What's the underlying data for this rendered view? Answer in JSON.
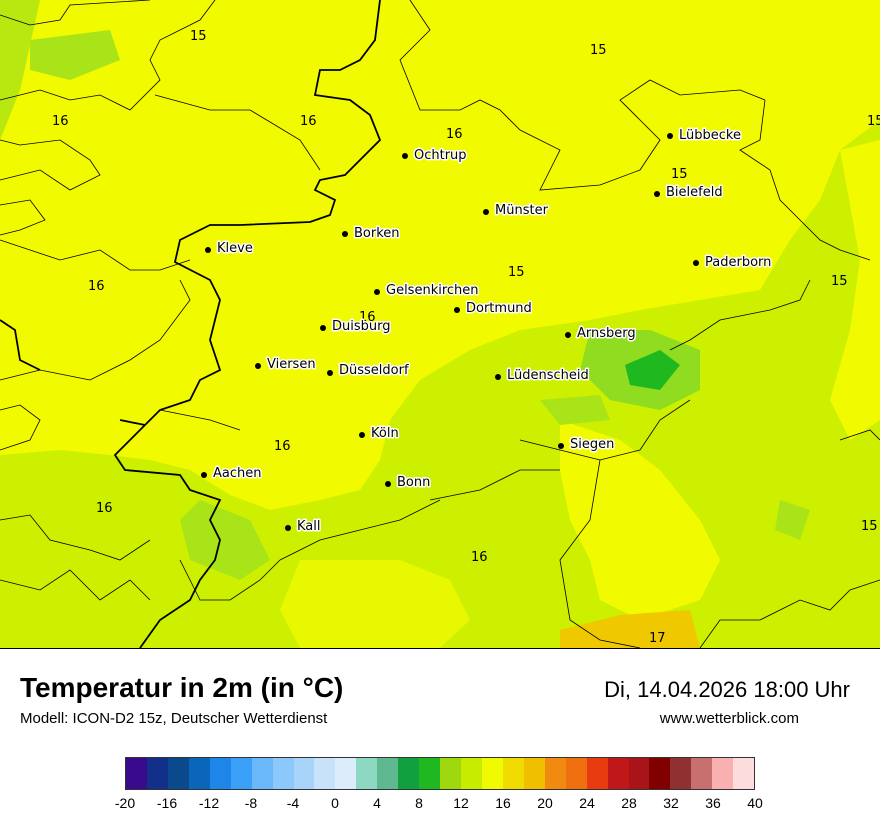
{
  "map": {
    "cities": [
      {
        "name": "Lübbecke"
      },
      {
        "name": "Ochtrup"
      },
      {
        "name": "Bielefeld"
      },
      {
        "name": "Münster"
      },
      {
        "name": "Borken"
      },
      {
        "name": "Kleve"
      },
      {
        "name": "Paderborn"
      },
      {
        "name": "Gelsenkirchen"
      },
      {
        "name": "Dortmund"
      },
      {
        "name": "Duisburg"
      },
      {
        "name": "Arnsberg"
      },
      {
        "name": "Viersen"
      },
      {
        "name": "Düsseldorf"
      },
      {
        "name": "Lüdenscheid"
      },
      {
        "name": "Köln"
      },
      {
        "name": "Siegen"
      },
      {
        "name": "Aachen"
      },
      {
        "name": "Bonn"
      },
      {
        "name": "Kall"
      }
    ],
    "isolines": [
      "15",
      "15",
      "16",
      "16",
      "16",
      "15",
      "15",
      "16",
      "15",
      "15",
      "16",
      "16",
      "15",
      "16",
      "17"
    ],
    "colors": {
      "yellow": "#f2fa00",
      "yellow_green": "#cdf000",
      "light_green": "#a8e418",
      "green": "#1fb81f",
      "orange": "#f0c800"
    }
  },
  "header": {
    "title": "Temperatur in 2m (in °C)",
    "model": "Modell: ICON-D2 15z, Deutscher Wetterdienst",
    "datetime": "Di, 14.04.2026 18:00 Uhr",
    "source": "www.wetterblick.com"
  },
  "legend": {
    "colors": [
      "#3a0a8c",
      "#12308a",
      "#0a4a8c",
      "#0a66b8",
      "#1e86e8",
      "#3aa0f8",
      "#6ab8fa",
      "#8cc8fa",
      "#a8d4fa",
      "#c8e2fa",
      "#dcecfa",
      "#8cd8c0",
      "#60b890",
      "#10a040",
      "#20b820",
      "#a0d810",
      "#c8ec00",
      "#f0fa00",
      "#f0dc00",
      "#f0c000",
      "#f08a10",
      "#f07010",
      "#e83c10",
      "#c01818",
      "#a81418",
      "#800000",
      "#903030",
      "#c87070",
      "#f8b0b0",
      "#fcdcdc"
    ],
    "ticks": [
      "-20",
      "-16",
      "-12",
      "-8",
      "-4",
      "0",
      "4",
      "8",
      "12",
      "16",
      "20",
      "24",
      "28",
      "32",
      "36",
      "40"
    ]
  }
}
